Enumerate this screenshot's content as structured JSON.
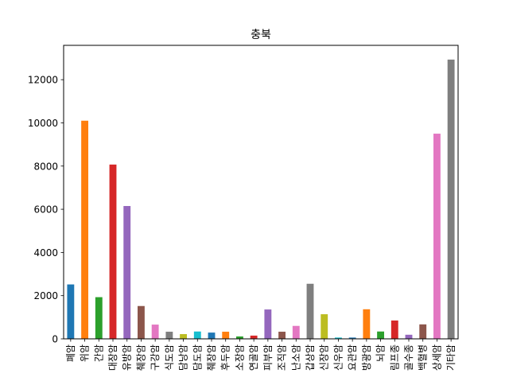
{
  "chart_data": {
    "type": "bar",
    "title": "충북",
    "xlabel": "",
    "ylabel": "",
    "ylim": [
      0,
      13590
    ],
    "yticks": [
      0,
      2000,
      4000,
      6000,
      8000,
      10000,
      12000
    ],
    "yticklabels": [
      "0",
      "2000",
      "4000",
      "6000",
      "8000",
      "10000",
      "12000"
    ],
    "grid": false,
    "legend": "none",
    "categories": [
      "폐암",
      "위암",
      "간암",
      "대장암",
      "유방암",
      "췌장암",
      "구강암",
      "식도암",
      "담낭암",
      "담도암",
      "췌장암",
      "후두암",
      "소장암",
      "연골암",
      "피부암",
      "조직암",
      "난소암",
      "갑상암",
      "신장암",
      "신우암",
      "요관암",
      "방광암",
      "뇌암",
      "림프종",
      "골수종",
      "백혈병",
      "상세암",
      "기타암"
    ],
    "values": [
      2520,
      10100,
      1930,
      8070,
      6150,
      1520,
      660,
      330,
      220,
      340,
      290,
      330,
      110,
      150,
      1360,
      330,
      600,
      2550,
      1140,
      60,
      60,
      1370,
      340,
      850,
      190,
      670,
      9500,
      12930
    ],
    "colors": [
      "#1f77b4",
      "#ff7f0e",
      "#2ca02c",
      "#d62728",
      "#9467bd",
      "#8c564b",
      "#e377c2",
      "#7f7f7f",
      "#bcbd22",
      "#17becf"
    ]
  }
}
